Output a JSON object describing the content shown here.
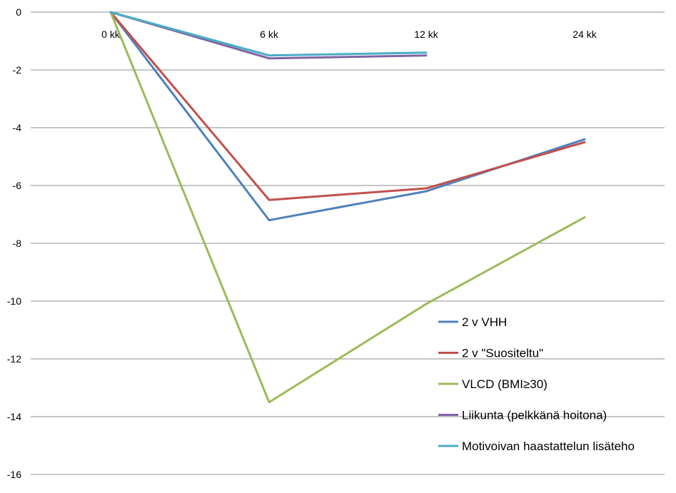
{
  "chart_data": {
    "type": "line",
    "categories": [
      "0 kk",
      "6 kk",
      "12 kk",
      "24 kk"
    ],
    "ylim": [
      -16,
      0
    ],
    "yticks": [
      0,
      -2,
      -4,
      -6,
      -8,
      -10,
      -12,
      -14,
      -16
    ],
    "ytick_labels": [
      "0",
      "-2",
      "-4",
      "-6",
      "-8",
      "-10",
      "-12",
      "-14",
      "-16"
    ],
    "grid": true,
    "legend_position": "bottom-right",
    "series": [
      {
        "name": "2 v VHH",
        "color": "#4f81bd",
        "values": [
          0,
          -7.2,
          -6.2,
          -4.4
        ]
      },
      {
        "name": "2 v \"Suositeltu\"",
        "color": "#c0504d",
        "values": [
          0,
          -6.5,
          -6.1,
          -4.5
        ]
      },
      {
        "name": "VLCD (BMI≥30)",
        "color": "#9bbb59",
        "values": [
          0,
          -13.5,
          -10.1,
          -7.1
        ]
      },
      {
        "name": "Liikunta (pelkkänä hoitona)",
        "color": "#8064a2",
        "values": [
          0,
          -1.6,
          -1.5,
          null
        ]
      },
      {
        "name": "Motivoivan haastattelun lisäteho",
        "color": "#4bacc6",
        "values": [
          0,
          -1.5,
          -1.4,
          null
        ]
      }
    ]
  }
}
